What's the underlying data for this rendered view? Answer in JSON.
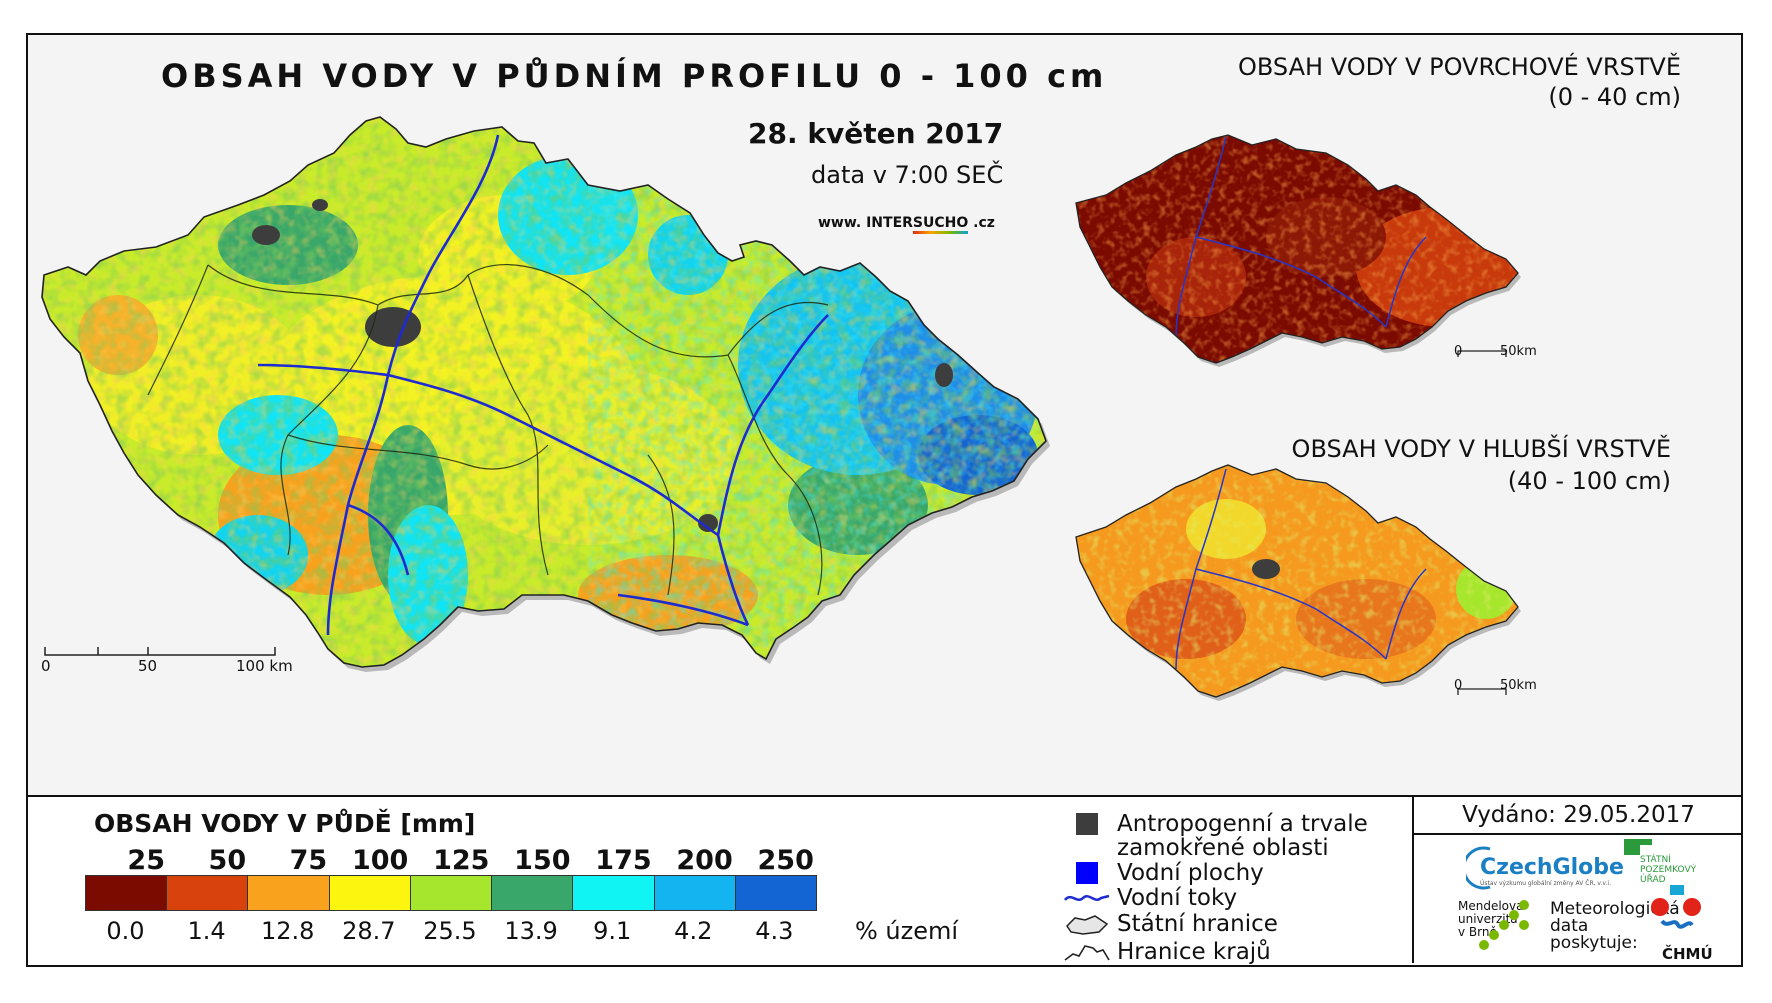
{
  "main_title": "OBSAH VODY V PŮDNÍM PROFILU 0 - 100 cm",
  "date": "28. květen 2017",
  "time": "data v 7:00 SEČ",
  "web": {
    "prefix": "www. INTER",
    "highlight": "SUCHO",
    "suffix": " .cz"
  },
  "inset_top": {
    "title": "OBSAH VODY V POVRCHOVÉ VRSTVĚ",
    "subtitle": "(0 - 40 cm)",
    "scale": [
      "0",
      "50km"
    ]
  },
  "inset_bottom": {
    "title": "OBSAH VODY V HLUBŠÍ VRSTVĚ",
    "subtitle": "(40 - 100 cm)",
    "scale": [
      "0",
      "50km"
    ]
  },
  "main_scale": [
    "0",
    "50",
    "100 km"
  ],
  "legend": {
    "title": "OBSAH VODY V PŮDĚ [mm]",
    "class_breaks": [
      "25",
      "50",
      "75",
      "100",
      "125",
      "150",
      "175",
      "200",
      "250"
    ],
    "classes": [
      {
        "color": "#7b0a00",
        "percent": "0.0"
      },
      {
        "color": "#d8420c",
        "percent": "1.4"
      },
      {
        "color": "#f9a21e",
        "percent": "12.8"
      },
      {
        "color": "#fbf510",
        "percent": "28.7"
      },
      {
        "color": "#a6e62c",
        "percent": "25.5"
      },
      {
        "color": "#3aa76a",
        "percent": "13.9"
      },
      {
        "color": "#11f4f4",
        "percent": "9.1"
      },
      {
        "color": "#14b4f0",
        "percent": "4.2"
      },
      {
        "color": "#1465d4",
        "percent": "4.3"
      }
    ],
    "percent_unit": "% území"
  },
  "symbols": [
    {
      "icon": "gray-square",
      "lines": [
        "Antropogenní a trvale",
        "zamokřené oblasti"
      ]
    },
    {
      "icon": "blue-square",
      "lines": [
        "Vodní plochy"
      ]
    },
    {
      "icon": "river-line",
      "lines": [
        "Vodní toky"
      ]
    },
    {
      "icon": "state-border",
      "lines": [
        "Státní hranice"
      ]
    },
    {
      "icon": "region-border",
      "lines": [
        "Hranice krajů"
      ]
    }
  ],
  "issued": "Vydáno: 29.05.2017",
  "logos": {
    "czechglobe": "CzechGlobe",
    "czechglobe_sub": "Ústav výzkumu globální změny AV ČR, v.v.i.",
    "spu": [
      "STÁTNÍ",
      "POZEMKOVÝ",
      "ÚŘAD"
    ],
    "mendel": [
      "Mendelova",
      "univerzita",
      "v Brně"
    ],
    "meteo": [
      "Meteorologická",
      "data",
      "poskytuje:"
    ],
    "chmu": "ČHMÚ"
  },
  "colors": {
    "frame": "#111111",
    "river": "#1e2bd0",
    "anthropogenic": "#3d3d3d",
    "water": "#0000ff"
  }
}
